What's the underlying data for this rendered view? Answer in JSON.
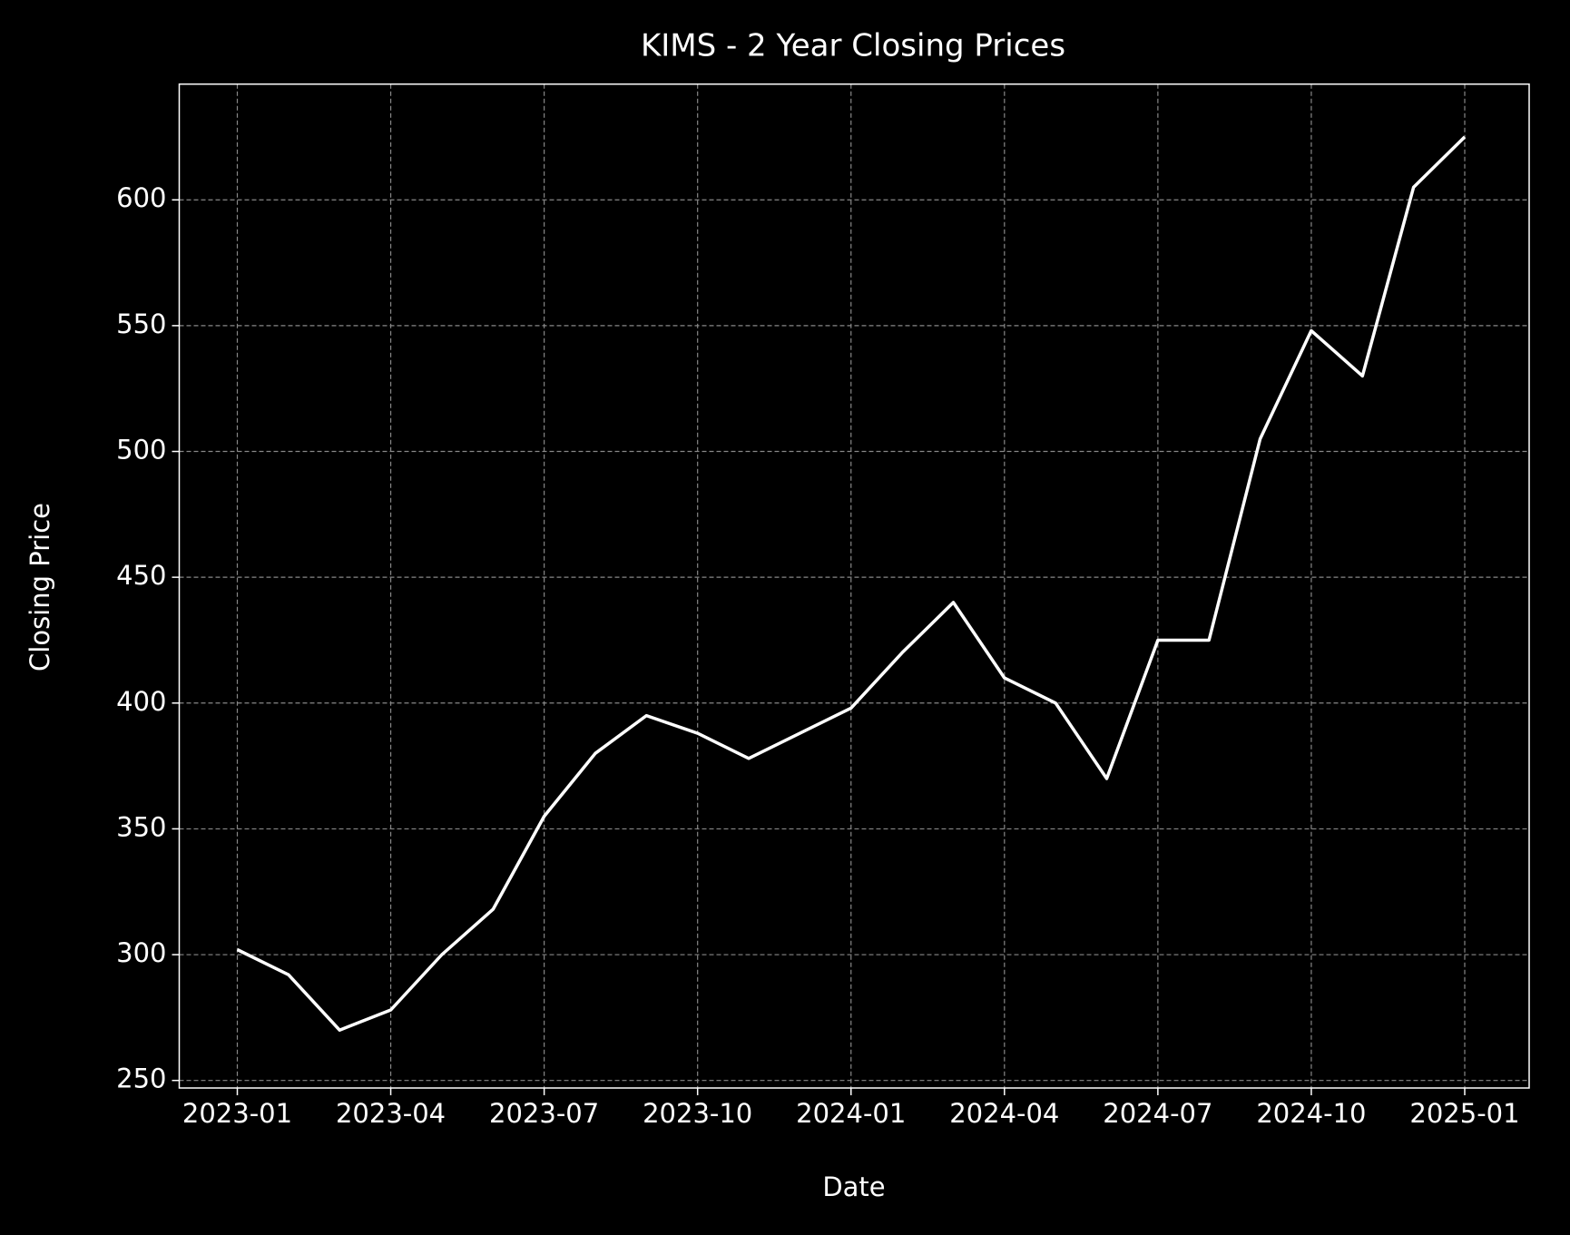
{
  "chart_data": {
    "type": "line",
    "title": "KIMS - 2 Year Closing Prices",
    "x_label": "Date",
    "y_label": "Closing Price",
    "x": [
      "2023-01",
      "2023-02",
      "2023-03",
      "2023-04",
      "2023-05",
      "2023-06",
      "2023-07",
      "2023-08",
      "2023-09",
      "2023-10",
      "2023-11",
      "2023-12",
      "2024-01",
      "2024-02",
      "2024-03",
      "2024-04",
      "2024-05",
      "2024-06",
      "2024-07",
      "2024-08",
      "2024-09",
      "2024-10",
      "2024-11",
      "2024-12",
      "2025-01"
    ],
    "series": [
      {
        "name": "KIMS",
        "color": "#ffffff",
        "values": [
          302,
          292,
          270,
          278,
          300,
          318,
          355,
          380,
          395,
          388,
          378,
          388,
          398,
          420,
          440,
          410,
          400,
          370,
          425,
          425,
          505,
          548,
          530,
          605,
          625
        ]
      }
    ],
    "xticks": [
      "2023-01",
      "2023-04",
      "2023-07",
      "2023-10",
      "2024-01",
      "2024-04",
      "2024-07",
      "2024-10",
      "2025-01"
    ],
    "ylim": [
      247,
      646
    ],
    "yticks": [
      250,
      300,
      350,
      400,
      450,
      500,
      550,
      600
    ],
    "grid": true
  }
}
